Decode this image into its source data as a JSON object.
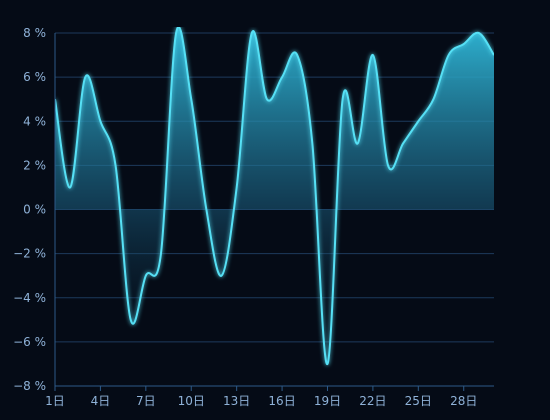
{
  "chart_data": {
    "type": "area",
    "title": "",
    "xlabel": "",
    "ylabel": "",
    "x": [
      1,
      2,
      3,
      4,
      5,
      6,
      7,
      8,
      9,
      10,
      11,
      12,
      13,
      14,
      15,
      16,
      17,
      18,
      19,
      20,
      21,
      22,
      23,
      24,
      25,
      26,
      27,
      28,
      29,
      30
    ],
    "x_tick_values": [
      1,
      4,
      7,
      10,
      13,
      16,
      19,
      22,
      25,
      28
    ],
    "x_tick_labels": [
      "1日",
      "4日",
      "7日",
      "10日",
      "13日",
      "16日",
      "19日",
      "22日",
      "25日",
      "28日"
    ],
    "y_ticks": [
      -8,
      -6,
      -4,
      -2,
      0,
      2,
      4,
      6,
      8
    ],
    "y_tick_labels": [
      "−8 %",
      "−6 %",
      "−4 %",
      "−2 %",
      "0 %",
      "2 %",
      "4 %",
      "6 %",
      "8 %"
    ],
    "ylim": [
      -8,
      8
    ],
    "xlim": [
      1,
      30
    ],
    "series": [
      {
        "values": [
          5.0,
          1.0,
          6.0,
          4.0,
          2.0,
          -5.0,
          -3.0,
          -2.0,
          8.0,
          5.0,
          0.0,
          -3.0,
          1.0,
          8.0,
          5.0,
          6.0,
          7.0,
          3.0,
          -7.0,
          5.0,
          3.0,
          7.0,
          2.0,
          3.0,
          4.0,
          5.0,
          7.0,
          7.5,
          8.0,
          7.0
        ]
      }
    ],
    "grid": "horizontal",
    "colors": {
      "line": "#56e0f5",
      "fill_top": "#2aa8c8",
      "background": "#050b16",
      "grid": "#1d3a5c",
      "axis": "#2d5a88",
      "tick_text": "#8fb2d8"
    }
  }
}
